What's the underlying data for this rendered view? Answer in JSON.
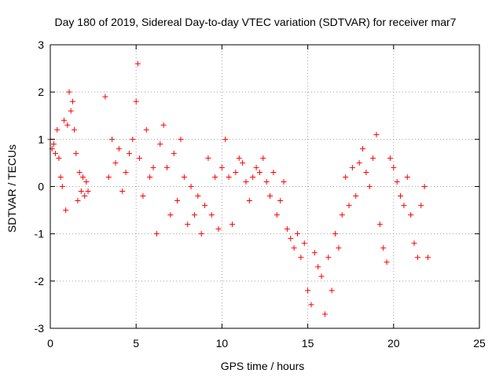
{
  "chart_data": {
    "type": "scatter",
    "title": "Day 180 of 2019, Sidereal Day-to-day VTEC variation (SDTVAR) for receiver mar7",
    "xlabel": "GPS time / hours",
    "ylabel": "SDTVAR / TECUs",
    "xlim": [
      0,
      25
    ],
    "ylim": [
      -3,
      3
    ],
    "xticks": [
      "0",
      "5",
      "10",
      "15",
      "20",
      "25"
    ],
    "yticks": [
      "-3",
      "-2",
      "-1",
      "0",
      "1",
      "2",
      "3"
    ],
    "grid": true,
    "marker": "plus",
    "colors": {
      "marker": "#ff0000",
      "grid": "#a0a0a0",
      "axis": "#000000"
    },
    "series": [
      {
        "name": "SDTVAR",
        "x": [
          0.0,
          0.1,
          0.2,
          0.3,
          0.4,
          0.5,
          0.6,
          0.7,
          0.8,
          0.9,
          1.0,
          1.1,
          1.2,
          1.3,
          1.4,
          1.5,
          1.6,
          1.7,
          1.8,
          1.9,
          2.0,
          2.1,
          2.2,
          3.2,
          3.4,
          3.6,
          3.8,
          4.0,
          4.2,
          4.4,
          4.6,
          4.8,
          5.0,
          5.1,
          5.2,
          5.4,
          5.6,
          5.8,
          6.0,
          6.2,
          6.4,
          6.6,
          6.8,
          7.0,
          7.2,
          7.4,
          7.6,
          7.8,
          8.0,
          8.2,
          8.4,
          8.6,
          8.8,
          9.0,
          9.2,
          9.4,
          9.6,
          9.8,
          10.0,
          10.2,
          10.4,
          10.6,
          10.8,
          11.0,
          11.2,
          11.4,
          11.6,
          11.8,
          12.0,
          12.2,
          12.4,
          12.6,
          12.8,
          13.0,
          13.2,
          13.4,
          13.6,
          13.8,
          14.0,
          14.2,
          14.4,
          14.6,
          14.8,
          15.0,
          15.2,
          15.4,
          15.6,
          15.8,
          16.0,
          16.2,
          16.4,
          16.6,
          16.8,
          17.0,
          17.2,
          17.4,
          17.6,
          17.8,
          18.0,
          18.2,
          18.4,
          18.6,
          18.8,
          19.0,
          19.2,
          19.4,
          19.6,
          19.8,
          20.0,
          20.2,
          20.4,
          20.6,
          20.8,
          21.0,
          21.2,
          21.4,
          21.6,
          21.8,
          22.0
        ],
        "y": [
          1.0,
          0.8,
          0.9,
          0.7,
          1.2,
          0.6,
          0.2,
          0.0,
          1.4,
          -0.5,
          1.3,
          2.0,
          1.6,
          1.8,
          1.2,
          0.7,
          -0.3,
          0.3,
          -0.1,
          0.2,
          -0.2,
          0.1,
          -0.1,
          1.9,
          0.2,
          1.0,
          0.5,
          0.8,
          -0.1,
          0.3,
          0.7,
          1.0,
          1.8,
          2.6,
          0.6,
          -0.2,
          1.2,
          0.2,
          0.4,
          -1.0,
          0.9,
          1.3,
          0.4,
          -0.6,
          0.7,
          -0.3,
          1.0,
          0.2,
          -0.8,
          0.0,
          -0.6,
          -0.2,
          -1.0,
          -0.4,
          0.6,
          -0.6,
          0.2,
          -0.9,
          0.4,
          1.0,
          0.2,
          -0.8,
          0.3,
          0.6,
          0.5,
          0.1,
          -0.3,
          0.2,
          0.4,
          0.3,
          0.6,
          0.1,
          -0.2,
          0.3,
          -0.6,
          -0.3,
          0.1,
          -0.9,
          -1.1,
          -1.3,
          -1.0,
          -1.5,
          -1.2,
          -2.2,
          -2.5,
          -1.4,
          -1.7,
          -1.9,
          -2.7,
          -1.5,
          -2.2,
          -1.0,
          -1.3,
          -0.6,
          0.2,
          -0.4,
          0.4,
          -0.2,
          0.5,
          0.8,
          0.3,
          0.0,
          0.6,
          1.1,
          -0.8,
          -1.3,
          -1.6,
          0.6,
          0.4,
          0.1,
          -0.2,
          -0.4,
          0.2,
          -0.6,
          -1.2,
          -1.5,
          -0.4,
          0.0,
          -1.5
        ]
      }
    ]
  }
}
